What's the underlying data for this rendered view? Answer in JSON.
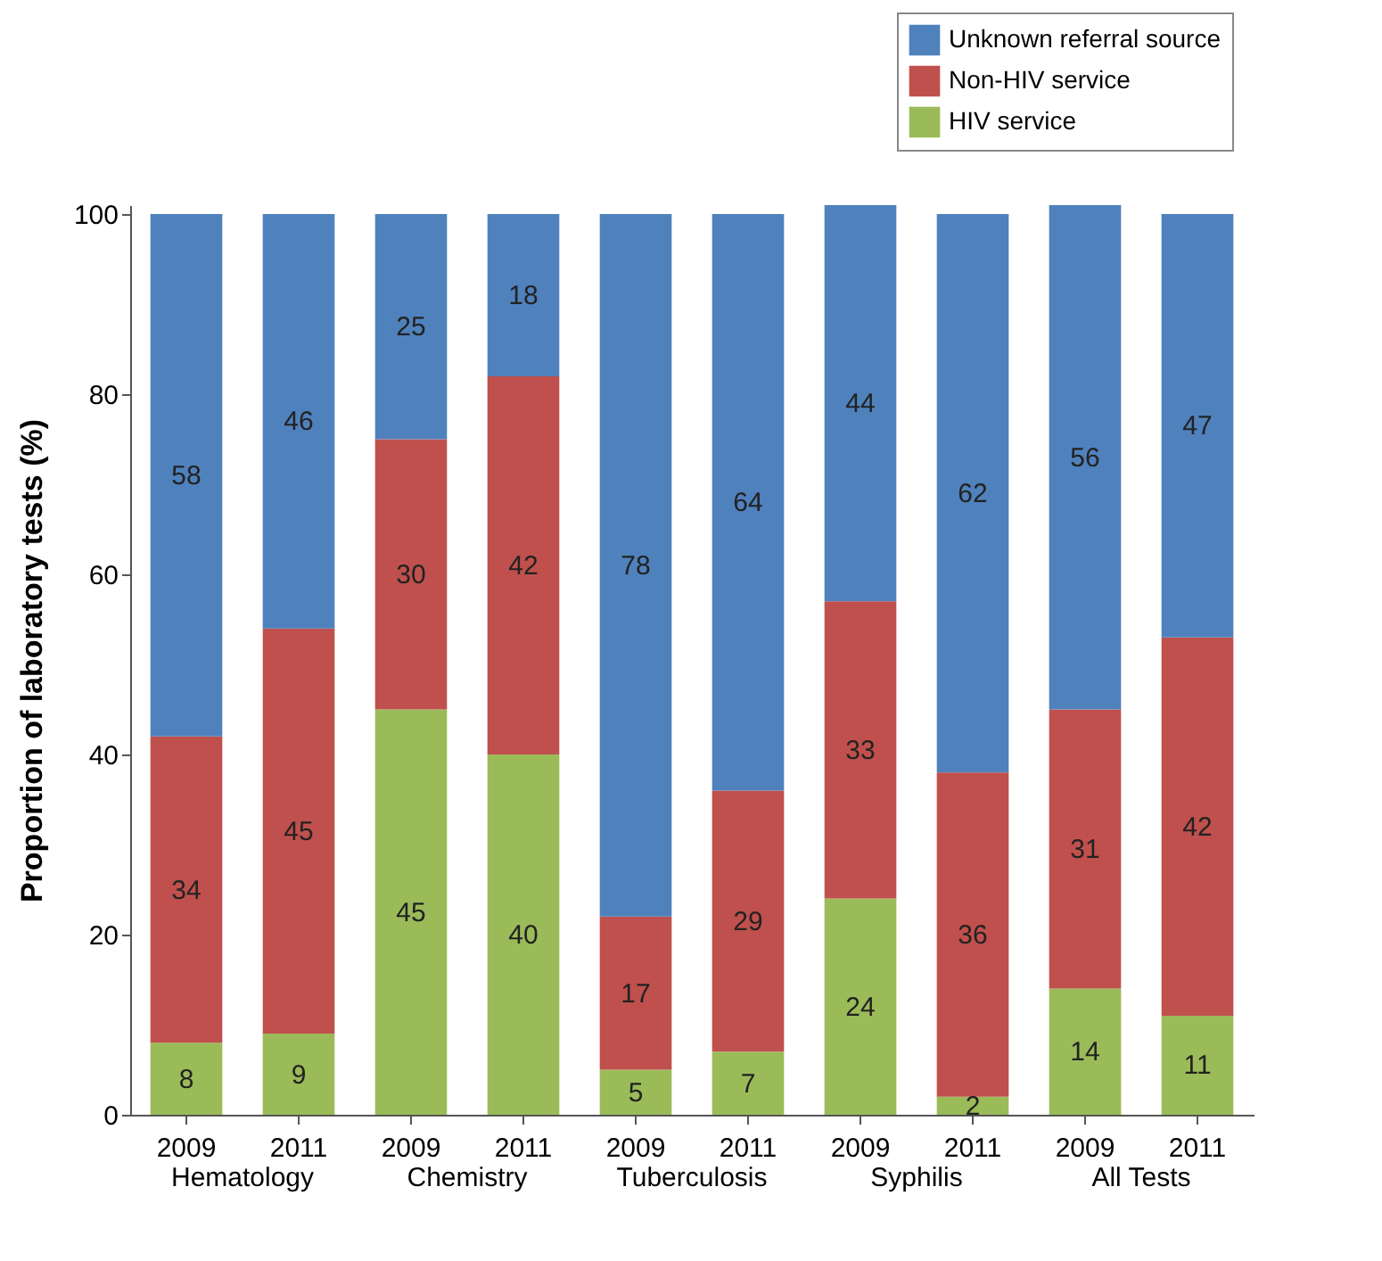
{
  "chart_data": {
    "type": "bar",
    "stacked": true,
    "ylabel": "Proportion of laboratory tests (%)",
    "categories": [
      "2009",
      "2011",
      "2009",
      "2011",
      "2009",
      "2011",
      "2009",
      "2011",
      "2009",
      "2011"
    ],
    "series": [
      {
        "name": "HIV service",
        "color": "#9bbb59",
        "values": [
          8,
          9,
          45,
          40,
          5,
          7,
          24,
          2,
          14,
          11
        ]
      },
      {
        "name": "Non-HIV service",
        "color": "#c0504d",
        "values": [
          34,
          45,
          30,
          42,
          17,
          29,
          33,
          36,
          31,
          42
        ]
      },
      {
        "name": "Unknown referral source",
        "color": "#4f81bd",
        "values": [
          58,
          46,
          25,
          18,
          78,
          64,
          44,
          62,
          56,
          47
        ]
      }
    ],
    "annotations": [
      "Hematology",
      "Chemistry",
      "Tuberculosis",
      "Syphilis",
      "All Tests"
    ],
    "ylim": [
      0,
      101
    ],
    "yticks": [
      0,
      20,
      40,
      60,
      80,
      100
    ],
    "grid": false,
    "data_labels": true,
    "legend": "top right"
  }
}
